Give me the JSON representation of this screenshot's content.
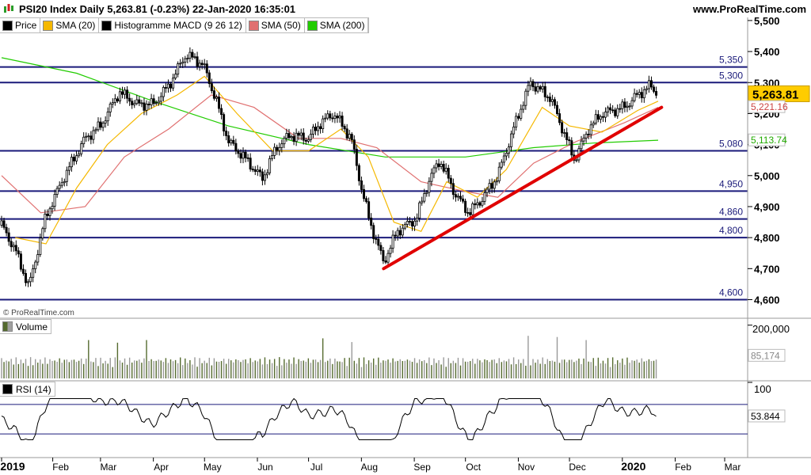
{
  "header": {
    "title": "PSI20 Index Daily 5,263.81 (-0.23%) 22-Jan-2020 16:35:01",
    "site": "www.ProRealTime.com"
  },
  "legend": [
    {
      "label": "Price",
      "color": "#000000"
    },
    {
      "label": "SMA (20)",
      "color": "#f5b800"
    },
    {
      "label": "Histogramme MACD (9 26 12)",
      "color": "#000000"
    },
    {
      "label": "SMA (50)",
      "color": "#e07070"
    },
    {
      "label": "SMA (200)",
      "color": "#22cc00"
    }
  ],
  "watermark": "© ProRealTime.com",
  "volume_panel": {
    "label": "Volume",
    "tick": "200,000",
    "value_tag": "85,174"
  },
  "rsi_panel": {
    "label": "RSI (14)",
    "tick": "100",
    "value_tag": "53.844"
  },
  "chart_data": {
    "type": "candlestick",
    "y_range": [
      4540,
      5510
    ],
    "price_ticks": [
      "5,500",
      "5,400",
      "5,300",
      "5,200",
      "5,100",
      "5,000",
      "4,900",
      "4,800",
      "4,700",
      "4,600"
    ],
    "price_tick_values": [
      5500,
      5400,
      5300,
      5200,
      5100,
      5000,
      4900,
      4800,
      4700,
      4600
    ],
    "x_labels": [
      "2019",
      "Feb",
      "Mar",
      "Apr",
      "May",
      "Jun",
      "Jul",
      "Aug",
      "Sep",
      "Oct",
      "Nov",
      "Dec",
      "2020",
      "Feb",
      "Mar"
    ],
    "bold_x_labels": [
      "2019",
      "2020"
    ],
    "horizontal_levels": [
      {
        "value": 5350,
        "label": "5,350"
      },
      {
        "value": 5300,
        "label": "5,300"
      },
      {
        "value": 5080,
        "label": "5,080"
      },
      {
        "value": 4950,
        "label": "4,950"
      },
      {
        "value": 4860,
        "label": "4,860"
      },
      {
        "value": 4800,
        "label": "4,800"
      },
      {
        "value": 4600,
        "label": "4,600"
      }
    ],
    "trendline": {
      "from_date": "2019-08-14",
      "from_value": 4700,
      "to_date": "2020-01-24",
      "to_value": 5220,
      "color": "#e00000"
    },
    "value_tags": [
      {
        "label": "5,263.81",
        "value": 5263.81,
        "style": "last_price"
      },
      {
        "label": "5,221.16",
        "value": 5221.16,
        "color": "#cc4444"
      },
      {
        "label": "5,113.74",
        "value": 5113.74,
        "color": "#22aa00"
      }
    ],
    "series": [
      {
        "name": "Price",
        "color": "#000000",
        "approx_close_path": [
          [
            "2019-01-02",
            4840
          ],
          [
            "2019-01-10",
            4760
          ],
          [
            "2019-01-18",
            4640
          ],
          [
            "2019-01-28",
            4870
          ],
          [
            "2019-02-08",
            5000
          ],
          [
            "2019-02-20",
            5120
          ],
          [
            "2019-03-01",
            5160
          ],
          [
            "2019-03-12",
            5270
          ],
          [
            "2019-03-22",
            5230
          ],
          [
            "2019-04-01",
            5230
          ],
          [
            "2019-04-10",
            5290
          ],
          [
            "2019-04-20",
            5390
          ],
          [
            "2019-04-30",
            5360
          ],
          [
            "2019-05-08",
            5240
          ],
          [
            "2019-05-15",
            5110
          ],
          [
            "2019-05-24",
            5060
          ],
          [
            "2019-06-04",
            4990
          ],
          [
            "2019-06-12",
            5090
          ],
          [
            "2019-06-20",
            5130
          ],
          [
            "2019-07-01",
            5120
          ],
          [
            "2019-07-08",
            5170
          ],
          [
            "2019-07-16",
            5200
          ],
          [
            "2019-07-26",
            5120
          ],
          [
            "2019-08-01",
            4960
          ],
          [
            "2019-08-06",
            4850
          ],
          [
            "2019-08-14",
            4720
          ],
          [
            "2019-08-22",
            4820
          ],
          [
            "2019-09-02",
            4860
          ],
          [
            "2019-09-10",
            4990
          ],
          [
            "2019-09-16",
            5050
          ],
          [
            "2019-09-25",
            4940
          ],
          [
            "2019-10-03",
            4880
          ],
          [
            "2019-10-10",
            4920
          ],
          [
            "2019-10-20",
            5000
          ],
          [
            "2019-10-31",
            5180
          ],
          [
            "2019-11-08",
            5300
          ],
          [
            "2019-11-20",
            5250
          ],
          [
            "2019-11-29",
            5120
          ],
          [
            "2019-12-04",
            5050
          ],
          [
            "2019-12-12",
            5150
          ],
          [
            "2019-12-20",
            5200
          ],
          [
            "2020-01-02",
            5220
          ],
          [
            "2020-01-10",
            5260
          ],
          [
            "2020-01-17",
            5290
          ],
          [
            "2020-01-22",
            5264
          ]
        ]
      },
      {
        "name": "SMA (20)",
        "color": "#f5b800",
        "approx_path": [
          [
            "2019-01-10",
            4800
          ],
          [
            "2019-01-28",
            4780
          ],
          [
            "2019-02-15",
            4960
          ],
          [
            "2019-03-05",
            5100
          ],
          [
            "2019-03-25",
            5200
          ],
          [
            "2019-04-15",
            5260
          ],
          [
            "2019-05-01",
            5320
          ],
          [
            "2019-05-20",
            5200
          ],
          [
            "2019-06-10",
            5080
          ],
          [
            "2019-07-01",
            5080
          ],
          [
            "2019-07-20",
            5150
          ],
          [
            "2019-08-05",
            5060
          ],
          [
            "2019-08-20",
            4850
          ],
          [
            "2019-09-05",
            4820
          ],
          [
            "2019-09-20",
            4980
          ],
          [
            "2019-10-08",
            4930
          ],
          [
            "2019-10-25",
            5020
          ],
          [
            "2019-11-15",
            5220
          ],
          [
            "2019-12-01",
            5160
          ],
          [
            "2019-12-20",
            5140
          ],
          [
            "2020-01-10",
            5210
          ],
          [
            "2020-01-22",
            5240
          ]
        ]
      },
      {
        "name": "SMA (50)",
        "color": "#e07070",
        "approx_path": [
          [
            "2019-01-02",
            5000
          ],
          [
            "2019-01-25",
            4880
          ],
          [
            "2019-02-20",
            4900
          ],
          [
            "2019-03-15",
            5060
          ],
          [
            "2019-04-10",
            5150
          ],
          [
            "2019-05-05",
            5260
          ],
          [
            "2019-05-30",
            5220
          ],
          [
            "2019-06-25",
            5120
          ],
          [
            "2019-07-20",
            5120
          ],
          [
            "2019-08-10",
            5090
          ],
          [
            "2019-09-05",
            4980
          ],
          [
            "2019-09-30",
            4950
          ],
          [
            "2019-10-20",
            4930
          ],
          [
            "2019-11-10",
            5040
          ],
          [
            "2019-12-05",
            5110
          ],
          [
            "2020-01-02",
            5170
          ],
          [
            "2020-01-22",
            5220
          ]
        ]
      },
      {
        "name": "SMA (200)",
        "color": "#22cc00",
        "approx_path": [
          [
            "2019-01-02",
            5380
          ],
          [
            "2019-02-15",
            5330
          ],
          [
            "2019-04-01",
            5240
          ],
          [
            "2019-05-15",
            5160
          ],
          [
            "2019-07-01",
            5100
          ],
          [
            "2019-08-15",
            5060
          ],
          [
            "2019-10-01",
            5060
          ],
          [
            "2019-11-10",
            5090
          ],
          [
            "2019-12-15",
            5105
          ],
          [
            "2020-01-22",
            5114
          ]
        ]
      }
    ],
    "volume": {
      "max": 200000,
      "last": 85174
    },
    "rsi": {
      "range": [
        0,
        100
      ],
      "upper": 70,
      "lower": 30,
      "last": 53.844
    }
  }
}
